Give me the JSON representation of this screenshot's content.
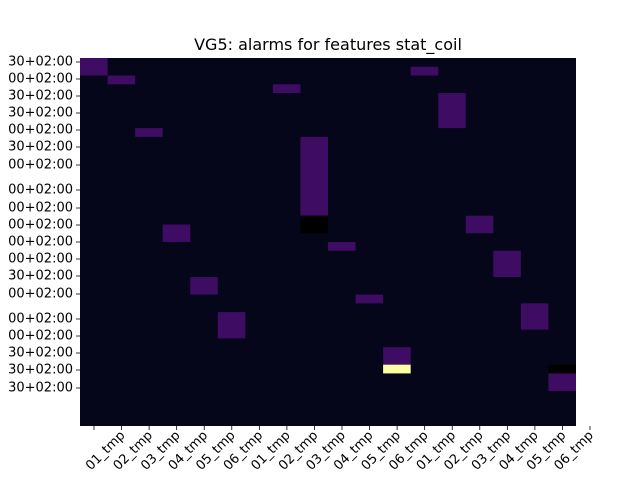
{
  "chart_data": {
    "type": "heatmap",
    "title": "VG5: alarms for features stat_coil",
    "xlabel": "",
    "ylabel": "",
    "x_tick_labels": [
      "",
      "01_tmp",
      "02_tmp",
      "03_tmp",
      "04_tmp",
      "05_tmp",
      "06_tmp",
      "01_tmp",
      "02_tmp",
      "03_tmp",
      "04_tmp",
      "05_tmp",
      "06_tmp",
      "01_tmp",
      "02_tmp",
      "03_tmp",
      "04_tmp",
      "05_tmp",
      "06_tmp"
    ],
    "y_tick_labels": [
      "30+02:00",
      "00+02:00",
      "30+02:00",
      "30+02:00",
      "00+02:00",
      "30+02:00",
      "00+02:00",
      "00+02:00",
      "00+02:00",
      "00+02:00",
      "00+02:00",
      "00+02:00",
      "30+02:00",
      "00+02:00",
      "00+02:00",
      "00+02:00",
      "30+02:00",
      "30+02:00",
      "30+02:00"
    ],
    "columns": 18,
    "rows": 42,
    "colormap": "inferno",
    "colors": {
      "background": "#06061a",
      "alarm": "#3f0c63",
      "missing": "#000000",
      "high": "#fcfea4"
    },
    "cells": [
      {
        "col": 0,
        "row_start": 0,
        "row_end": 1,
        "value": 0.2
      },
      {
        "col": 1,
        "row_start": 2,
        "row_end": 2,
        "value": 0.2
      },
      {
        "col": 2,
        "row_start": 8,
        "row_end": 8,
        "value": 0.2
      },
      {
        "col": 3,
        "row_start": 19,
        "row_end": 20,
        "value": 0.2
      },
      {
        "col": 4,
        "row_start": 25,
        "row_end": 26,
        "value": 0.2
      },
      {
        "col": 5,
        "row_start": 29,
        "row_end": 31,
        "value": 0.2
      },
      {
        "col": 7,
        "row_start": 3,
        "row_end": 3,
        "value": 0.2
      },
      {
        "col": 8,
        "row_start": 9,
        "row_end": 17,
        "value": 0.2
      },
      {
        "col": 8,
        "row_start": 18,
        "row_end": 19,
        "value": null
      },
      {
        "col": 9,
        "row_start": 21,
        "row_end": 21,
        "value": 0.2
      },
      {
        "col": 10,
        "row_start": 27,
        "row_end": 27,
        "value": 0.2
      },
      {
        "col": 11,
        "row_start": 33,
        "row_end": 34,
        "value": 0.2
      },
      {
        "col": 11,
        "row_start": 35,
        "row_end": 35,
        "value": 1.0
      },
      {
        "col": 12,
        "row_start": 1,
        "row_end": 1,
        "value": 0.2
      },
      {
        "col": 13,
        "row_start": 4,
        "row_end": 7,
        "value": 0.2
      },
      {
        "col": 14,
        "row_start": 18,
        "row_end": 19,
        "value": 0.2
      },
      {
        "col": 15,
        "row_start": 22,
        "row_end": 24,
        "value": 0.2
      },
      {
        "col": 16,
        "row_start": 28,
        "row_end": 30,
        "value": 0.2
      },
      {
        "col": 17,
        "row_start": 35,
        "row_end": 35,
        "value": null
      },
      {
        "col": 17,
        "row_start": 36,
        "row_end": 37,
        "value": 0.2
      }
    ]
  }
}
